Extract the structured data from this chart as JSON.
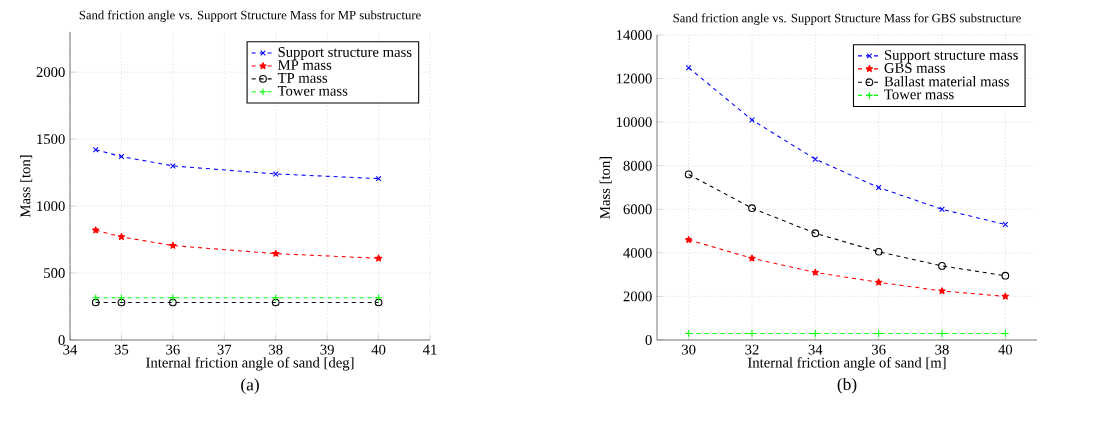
{
  "chart_data": [
    {
      "type": "line",
      "title": "Sand friction angle vs. Support Structure Mass for MP substructure",
      "xlabel": "Internal friction angle of sand [deg]",
      "ylabel": "Mass [ton]",
      "x": [
        34.5,
        35,
        36,
        38,
        40
      ],
      "series": [
        {
          "name": "Support structure mass",
          "color": "#0000ff",
          "marker": "cross",
          "values": [
            1420,
            1370,
            1300,
            1240,
            1205
          ]
        },
        {
          "name": "MP mass",
          "color": "#ff0000",
          "marker": "star",
          "values": [
            820,
            770,
            705,
            645,
            610
          ]
        },
        {
          "name": "TP mass",
          "color": "#000000",
          "marker": "circle",
          "values": [
            280,
            280,
            280,
            280,
            280
          ]
        },
        {
          "name": "Tower mass",
          "color": "#00ff00",
          "marker": "plus",
          "values": [
            315,
            315,
            315,
            315,
            315
          ]
        }
      ],
      "xlim": [
        34,
        41
      ],
      "ylim": [
        0,
        2300
      ],
      "xticks": [
        34,
        35,
        36,
        37,
        38,
        39,
        40,
        41
      ],
      "yticks": [
        0,
        500,
        1000,
        1500,
        2000
      ],
      "grid": true,
      "legend": "top right",
      "line_style": "dashed",
      "annotations": [
        "(a)"
      ]
    },
    {
      "type": "line",
      "title": "Sand friction angle vs. Support Structure Mass for GBS substructure",
      "xlabel": "Internal friction angle of sand [m]",
      "ylabel": "Mass [ton]",
      "x": [
        30,
        32,
        34,
        36,
        38,
        40
      ],
      "series": [
        {
          "name": "Support structure mass",
          "color": "#0000ff",
          "marker": "cross",
          "values": [
            12500,
            10100,
            8300,
            7000,
            6000,
            5300
          ]
        },
        {
          "name": "GBS mass",
          "color": "#ff0000",
          "marker": "star",
          "values": [
            4600,
            3750,
            3100,
            2650,
            2250,
            2000
          ]
        },
        {
          "name": "Ballast material mass",
          "color": "#000000",
          "marker": "circle",
          "values": [
            7600,
            6050,
            4900,
            4050,
            3400,
            2950
          ]
        },
        {
          "name": "Tower mass",
          "color": "#00ff00",
          "marker": "plus",
          "values": [
            300,
            300,
            300,
            300,
            300,
            300
          ]
        }
      ],
      "xlim": [
        29,
        41
      ],
      "ylim": [
        0,
        14000
      ],
      "xticks": [
        30,
        32,
        34,
        36,
        38,
        40
      ],
      "yticks": [
        0,
        2000,
        4000,
        6000,
        8000,
        10000,
        12000,
        14000
      ],
      "grid": true,
      "legend": "top right",
      "line_style": "dashed",
      "annotations": [
        "(b)"
      ]
    }
  ]
}
